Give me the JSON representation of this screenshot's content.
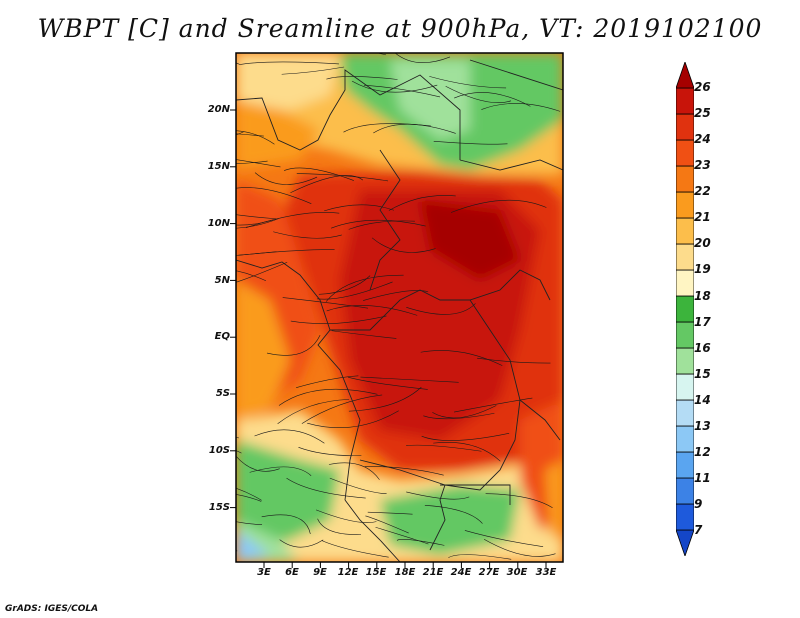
{
  "title": "WBPT [C] and Sreamline at 900hPa, VT: 2019102100",
  "credit": "GrADS: IGES/COLA",
  "map": {
    "variable": "WBPT",
    "units": "C",
    "level": "900hPa",
    "valid_time": "2019102100",
    "lat_labels": [
      "20N",
      "15N",
      "10N",
      "5N",
      "EQ",
      "5S",
      "10S",
      "15S"
    ],
    "lon_labels": [
      "3E",
      "6E",
      "9E",
      "12E",
      "15E",
      "18E",
      "21E",
      "24E",
      "27E",
      "30E",
      "33E"
    ]
  },
  "colorbar": {
    "levels": [
      "26",
      "25",
      "24",
      "23",
      "22",
      "21",
      "20",
      "19",
      "18",
      "17",
      "16",
      "15",
      "14",
      "13",
      "12",
      "11",
      "9",
      "7"
    ],
    "colors": [
      "#a50000",
      "#c8140a",
      "#e0320f",
      "#f05014",
      "#f57814",
      "#fa9b1e",
      "#fcbe4b",
      "#fddc8c",
      "#fff5c3",
      "#3cb43c",
      "#64c864",
      "#a0e19b",
      "#d7f5f0",
      "#b4dcf5",
      "#8cc8f5",
      "#5aa5f0",
      "#3c82e6",
      "#1e5adc",
      "#1446c8"
    ]
  }
}
